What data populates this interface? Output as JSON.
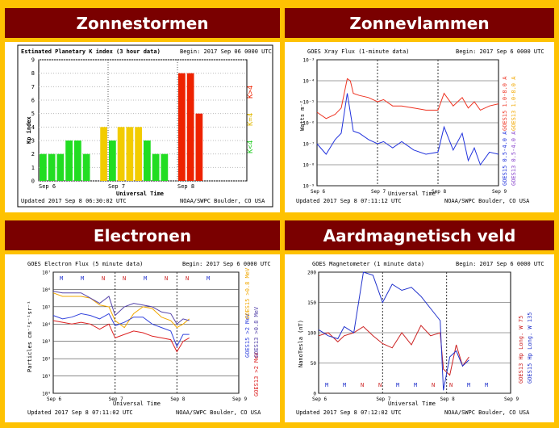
{
  "panels": {
    "kp": {
      "header": "Zonnestormen"
    },
    "xray": {
      "header": "Zonnevlammen"
    },
    "electron": {
      "header": "Electronen"
    },
    "mag": {
      "header": "Aardmagnetisch veld"
    }
  },
  "kp_chart": {
    "title": "Estimated Planetary K index (3 hour data)",
    "begin": "Begin:  2017 Sep 06 0000 UTC",
    "ylabel": "Kp index",
    "xlabel": "Universal Time",
    "xticks": [
      "Sep 6",
      "Sep 7",
      "Sep 8"
    ],
    "yticks": [
      "0",
      "1",
      "2",
      "3",
      "4",
      "5",
      "6",
      "7",
      "8",
      "9"
    ],
    "updated": "Updated 2017 Sep  8 06:30:02 UTC",
    "credit": "NOAA/SWPC Boulder, CO USA",
    "legend": [
      "K<4",
      "K=4",
      "K>4"
    ]
  },
  "xray_chart": {
    "title": "GOES Xray Flux (1-minute data)",
    "begin": "Begin:  2017 Sep 6  0000 UTC",
    "ylabel": "Watts m⁻²",
    "xlabel": "Universal Time",
    "xticks": [
      "Sep 6",
      "Sep 7",
      "Sep 8",
      "Sep 9"
    ],
    "yticks": [
      "10⁻³",
      "10⁻⁴",
      "10⁻⁵",
      "10⁻⁶",
      "10⁻⁷",
      "10⁻⁸",
      "10⁻⁹"
    ],
    "updated": "Updated 2017 Sep  8 07:11:12 UTC",
    "credit": "NOAA/SWPC Boulder, CO USA",
    "legend": [
      "GOES15 0.5-4.0 A",
      "GOES15 1.0-8.0 A",
      "GOES13 0.5-4.0 A",
      "GOES13 1.0-8.0 A"
    ]
  },
  "electron_chart": {
    "title": "GOES Electron Flux (5 minute data)",
    "begin": "Begin:  2017 Sep 6  0000 UTC",
    "ylabel": "Particles cm⁻²s⁻¹sr⁻¹",
    "xlabel": "Universal Time",
    "xticks": [
      "Sep 6",
      "Sep 7",
      "Sep 8",
      "Sep 9"
    ],
    "yticks": [
      "10⁷",
      "10⁶",
      "10⁵",
      "10⁴",
      "10³",
      "10²",
      "10¹",
      "10⁰"
    ],
    "markers": [
      "M",
      "M",
      "N",
      "N",
      "M",
      "N",
      "N",
      "M"
    ],
    "updated": "Updated 2017 Sep  8 07:11:02 UTC",
    "credit": "NOAA/SWPC Boulder, CO USA",
    "legend": [
      "GOES15 >2 MeV",
      "GOES15 >0.8 MeV",
      "GOES13 >2 MeV",
      "GOES13 >0.8 MeV"
    ]
  },
  "mag_chart": {
    "title": "GOES Magnetometer (1 minute data)",
    "begin": "Begin:  2017 Sep 6  0000 UTC",
    "ylabel": "NanoTesla (nT)",
    "xlabel": "Universal Time",
    "xticks": [
      "Sep 6",
      "Sep 7",
      "Sep 8",
      "Sep 9"
    ],
    "yticks": [
      "200",
      "150",
      "100",
      "50",
      "0"
    ],
    "markers": [
      "M",
      "M",
      "N",
      "N",
      "M",
      "M",
      "N",
      "N",
      "M",
      "M"
    ],
    "updated": "Updated 2017 Sep  8 07:12:02 UTC",
    "credit": "NOAA/SWPC Boulder, CO USA",
    "legend": [
      "GOES13 Hp   Long. W 75",
      "GOES15 Hp   Long. W 135"
    ]
  },
  "chart_data": [
    {
      "type": "bar",
      "title": "Estimated Planetary K index (3 hour data)",
      "ylabel": "Kp index",
      "xlabel": "Universal Time",
      "ylim": [
        0,
        9
      ],
      "values": [
        2,
        2,
        2,
        3,
        3,
        2,
        0,
        4,
        3,
        4,
        4,
        4,
        3,
        2,
        2,
        0,
        8,
        8,
        5
      ],
      "colors": [
        "#22dd22",
        "#22dd22",
        "#22dd22",
        "#22dd22",
        "#22dd22",
        "#22dd22",
        "#22dd22",
        "#f2cc00",
        "#22dd22",
        "#f2cc00",
        "#f2cc00",
        "#f2cc00",
        "#22dd22",
        "#22dd22",
        "#22dd22",
        "#22dd22",
        "#ee2200",
        "#ee2200",
        "#ee2200"
      ]
    },
    {
      "type": "line",
      "title": "GOES Xray Flux (1-minute data)",
      "ylabel": "Watts m⁻²",
      "xlabel": "Universal Time",
      "ylim_log10": [
        -9,
        -2
      ],
      "x_days": [
        0,
        0.15,
        0.3,
        0.4,
        0.5,
        0.55,
        0.6,
        0.7,
        0.85,
        1.0,
        1.1,
        1.25,
        1.4,
        1.6,
        1.8,
        2.0,
        2.1,
        2.25,
        2.4,
        2.5,
        2.6,
        2.7,
        2.85,
        3.0
      ],
      "series": [
        {
          "name": "GOES15 1.0-8.0 A",
          "log10": [
            -5.5,
            -5.8,
            -5.6,
            -5.3,
            -3.9,
            -4.0,
            -4.6,
            -4.7,
            -4.8,
            -5.0,
            -4.9,
            -5.2,
            -5.2,
            -5.3,
            -5.4,
            -5.4,
            -4.6,
            -5.2,
            -4.8,
            -5.3,
            -5.0,
            -5.4,
            -5.2,
            -5.1
          ]
        },
        {
          "name": "GOES15 0.5-4.0 A",
          "log10": [
            -7.0,
            -7.5,
            -6.8,
            -6.5,
            -4.6,
            -5.5,
            -6.4,
            -6.5,
            -6.8,
            -7.0,
            -6.9,
            -7.2,
            -6.9,
            -7.3,
            -7.5,
            -7.4,
            -6.2,
            -7.3,
            -6.5,
            -7.8,
            -7.2,
            -8.0,
            -7.4,
            -7.5
          ]
        }
      ]
    },
    {
      "type": "line",
      "title": "GOES Electron Flux (5 minute data)",
      "ylabel": "Particles cm⁻²s⁻¹sr⁻¹",
      "xlabel": "Universal Time",
      "ylim_log10": [
        0,
        7
      ],
      "x_days": [
        0,
        0.15,
        0.3,
        0.45,
        0.6,
        0.75,
        0.9,
        1.0,
        1.15,
        1.3,
        1.45,
        1.6,
        1.75,
        1.9,
        2.0,
        2.1,
        2.2
      ],
      "series": [
        {
          "name": "GOES15 >0.8 MeV",
          "color": "#f2a800",
          "log10": [
            5.8,
            5.6,
            5.6,
            5.6,
            5.5,
            5.1,
            5.0,
            4.2,
            3.8,
            4.6,
            5.0,
            4.9,
            4.4,
            4.2,
            3.8,
            4.0,
            4.3
          ]
        },
        {
          "name": "GOES13 >0.8 MeV",
          "color": "#5544aa",
          "log10": [
            5.9,
            5.8,
            5.8,
            5.8,
            5.5,
            5.2,
            5.6,
            4.5,
            5.0,
            5.2,
            5.1,
            5.0,
            4.7,
            4.6,
            4.0,
            4.3,
            4.2
          ]
        },
        {
          "name": "GOES15 >2 MeV",
          "color": "#3344dd",
          "log10": [
            4.5,
            4.3,
            4.4,
            4.6,
            4.5,
            4.3,
            4.6,
            3.9,
            4.1,
            4.4,
            4.4,
            4.0,
            3.8,
            3.6,
            2.7,
            3.4,
            3.4
          ]
        },
        {
          "name": "GOES13 >2 MeV",
          "color": "#dd2222",
          "log10": [
            4.2,
            4.1,
            4.0,
            4.1,
            4.0,
            3.7,
            4.0,
            3.2,
            3.4,
            3.6,
            3.5,
            3.3,
            3.2,
            3.1,
            2.4,
            3.0,
            3.2
          ]
        }
      ]
    },
    {
      "type": "line",
      "title": "GOES Magnetometer (1 minute data)",
      "ylabel": "NanoTesla (nT)",
      "xlabel": "Universal Time",
      "ylim": [
        0,
        200
      ],
      "x_days": [
        0,
        0.15,
        0.3,
        0.4,
        0.55,
        0.7,
        0.85,
        1.0,
        1.15,
        1.3,
        1.45,
        1.6,
        1.75,
        1.9,
        1.95,
        2.05,
        2.15,
        2.25,
        2.35
      ],
      "series": [
        {
          "name": "GOES13 Hp   Long. W 75",
          "color": "#cc2222",
          "log10": null,
          "values": [
            95,
            100,
            85,
            95,
            100,
            110,
            95,
            82,
            75,
            100,
            80,
            112,
            95,
            100,
            40,
            30,
            80,
            45,
            60
          ]
        },
        {
          "name": "GOES15 Hp   Long. W 135",
          "color": "#2233cc",
          "values": [
            105,
            95,
            90,
            110,
            100,
            200,
            195,
            150,
            180,
            170,
            175,
            160,
            140,
            120,
            5,
            60,
            70,
            45,
            55
          ]
        }
      ]
    }
  ]
}
